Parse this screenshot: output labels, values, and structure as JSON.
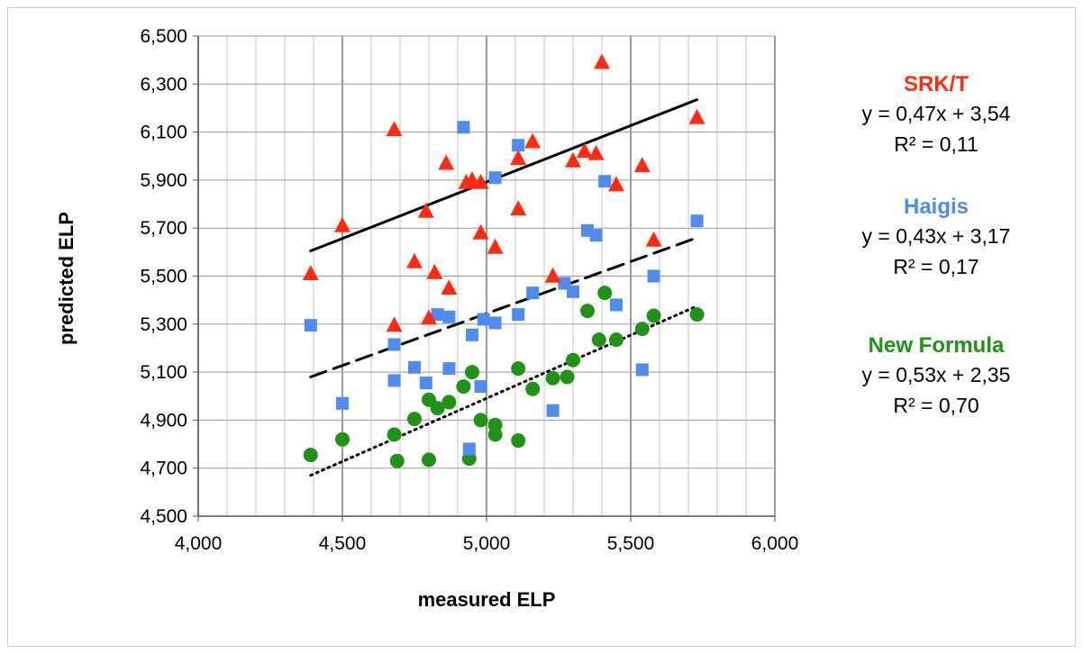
{
  "chart_data": {
    "type": "scatter",
    "xlabel": "measured ELP",
    "ylabel": "predicted ELP",
    "xlim": [
      4000,
      6000
    ],
    "ylim": [
      4500,
      6500
    ],
    "xticks": [
      "4,000",
      "4,500",
      "5,000",
      "5,500",
      "6,000"
    ],
    "yticks": [
      "4,500",
      "4,700",
      "4,900",
      "5,100",
      "5,300",
      "5,500",
      "5,700",
      "5,900",
      "6,100",
      "6,300",
      "6,500"
    ],
    "grid": true,
    "series": [
      {
        "name": "SRK/T",
        "color": "#ff2a0f",
        "marker": "triangle",
        "equation": "y = 0,47x + 3,54",
        "r2": "R² = 0,11",
        "trendline": {
          "style": "solid",
          "x": [
            4390,
            5730
          ],
          "y": [
            5605,
            6235
          ]
        },
        "points": [
          [
            4390,
            5510
          ],
          [
            4500,
            5710
          ],
          [
            4680,
            6110
          ],
          [
            4680,
            5295
          ],
          [
            4750,
            5560
          ],
          [
            4790,
            5770
          ],
          [
            4800,
            5325
          ],
          [
            4820,
            5515
          ],
          [
            4860,
            5970
          ],
          [
            4870,
            5450
          ],
          [
            4930,
            5890
          ],
          [
            4950,
            5900
          ],
          [
            4980,
            5890
          ],
          [
            4980,
            5680
          ],
          [
            5030,
            5620
          ],
          [
            5110,
            5780
          ],
          [
            5110,
            5990
          ],
          [
            5160,
            6060
          ],
          [
            5230,
            5500
          ],
          [
            5300,
            5980
          ],
          [
            5340,
            6020
          ],
          [
            5380,
            6010
          ],
          [
            5400,
            6390
          ],
          [
            5450,
            5880
          ],
          [
            5540,
            5960
          ],
          [
            5580,
            5650
          ],
          [
            5730,
            6160
          ]
        ]
      },
      {
        "name": "Haigis",
        "color": "#4d8cf0",
        "marker": "square",
        "equation": "y = 0,43x + 3,17",
        "r2": "R² = 0,17",
        "trendline": {
          "style": "dashed",
          "x": [
            4390,
            5730
          ],
          "y": [
            5080,
            5660
          ]
        },
        "points": [
          [
            4390,
            5295
          ],
          [
            4500,
            4970
          ],
          [
            4680,
            5215
          ],
          [
            4680,
            5065
          ],
          [
            4750,
            5120
          ],
          [
            4790,
            5055
          ],
          [
            4830,
            5340
          ],
          [
            4870,
            5330
          ],
          [
            4870,
            5115
          ],
          [
            4920,
            6120
          ],
          [
            4940,
            4780
          ],
          [
            4950,
            5255
          ],
          [
            4980,
            5040
          ],
          [
            4990,
            5320
          ],
          [
            5030,
            5305
          ],
          [
            5030,
            5910
          ],
          [
            5110,
            6045
          ],
          [
            5110,
            5340
          ],
          [
            5160,
            5430
          ],
          [
            5230,
            4940
          ],
          [
            5270,
            5470
          ],
          [
            5300,
            5435
          ],
          [
            5350,
            5690
          ],
          [
            5380,
            5670
          ],
          [
            5410,
            5895
          ],
          [
            5450,
            5380
          ],
          [
            5540,
            5110
          ],
          [
            5580,
            5500
          ],
          [
            5730,
            5730
          ]
        ]
      },
      {
        "name": "New Formula",
        "color": "#1e9414",
        "marker": "circle",
        "equation": "y = 0,53x + 2,35",
        "r2": "R² = 0,70",
        "trendline": {
          "style": "dotted",
          "x": [
            4390,
            5730
          ],
          "y": [
            4670,
            5375
          ]
        },
        "points": [
          [
            4390,
            4755
          ],
          [
            4500,
            4820
          ],
          [
            4680,
            4840
          ],
          [
            4690,
            4730
          ],
          [
            4750,
            4905
          ],
          [
            4800,
            4985
          ],
          [
            4800,
            4735
          ],
          [
            4830,
            4950
          ],
          [
            4870,
            4975
          ],
          [
            4920,
            5040
          ],
          [
            4940,
            4740
          ],
          [
            4950,
            5100
          ],
          [
            4980,
            4900
          ],
          [
            5030,
            4880
          ],
          [
            5030,
            4840
          ],
          [
            5110,
            5115
          ],
          [
            5110,
            4815
          ],
          [
            5160,
            5030
          ],
          [
            5230,
            5075
          ],
          [
            5280,
            5080
          ],
          [
            5300,
            5150
          ],
          [
            5350,
            5355
          ],
          [
            5390,
            5235
          ],
          [
            5410,
            5430
          ],
          [
            5450,
            5235
          ],
          [
            5540,
            5280
          ],
          [
            5580,
            5335
          ],
          [
            5730,
            5340
          ]
        ]
      }
    ]
  }
}
